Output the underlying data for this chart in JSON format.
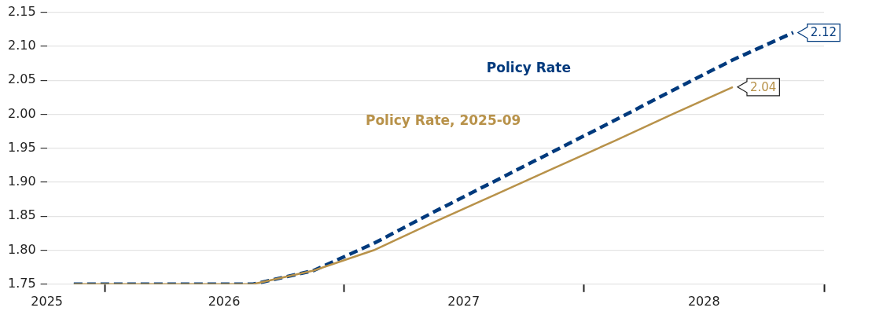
{
  "chart_data": {
    "type": "line",
    "x": [
      "2025-11-15",
      "2026-02-15",
      "2026-05-15",
      "2026-08-15",
      "2026-11-15",
      "2027-02-15",
      "2027-05-15",
      "2027-08-15",
      "2027-11-15",
      "2028-02-15",
      "2028-05-15",
      "2028-08-15",
      "2028-11-15"
    ],
    "series": [
      {
        "name": "Policy Rate",
        "color": "#003a7d",
        "line_style": "dashed",
        "values": [
          1.75,
          1.75,
          1.75,
          1.75,
          1.77,
          1.81,
          1.855,
          1.9,
          1.945,
          1.99,
          2.035,
          2.08,
          2.12
        ],
        "value_labels": [
          null,
          null,
          null,
          null,
          null,
          null,
          null,
          null,
          null,
          null,
          null,
          null,
          "2.12"
        ]
      },
      {
        "name": "Policy Rate, 2025-09",
        "color": "#b8924a",
        "line_style": "solid",
        "values": [
          1.75,
          1.75,
          1.75,
          1.75,
          1.77,
          1.8,
          1.84,
          1.88,
          1.92,
          1.96,
          2.0,
          2.04,
          null
        ],
        "value_labels": [
          null,
          null,
          null,
          null,
          null,
          null,
          null,
          null,
          null,
          null,
          null,
          "2.04",
          null
        ]
      }
    ],
    "xlim": [
      "2025-10-05",
      "2029-01-01"
    ],
    "xticks": [
      {
        "value": "2025-10-05",
        "label": "2025"
      },
      {
        "value": "2026-01-01",
        "label": null
      },
      {
        "value": "2026-07-02",
        "label": "2026"
      },
      {
        "value": "2027-01-01",
        "label": null
      },
      {
        "value": "2027-07-02",
        "label": "2027"
      },
      {
        "value": "2028-01-01",
        "label": null
      },
      {
        "value": "2028-07-02",
        "label": "2028"
      },
      {
        "value": "2029-01-01",
        "label": null
      }
    ],
    "ylim": [
      1.75,
      2.15
    ],
    "yticks": [
      1.75,
      {
        "value": 1.8,
        "label": "1.80"
      },
      1.85,
      {
        "value": 1.9,
        "label": "1.90"
      },
      1.95,
      {
        "value": 2.0,
        "label": "2.00"
      },
      2.05,
      {
        "value": 2.1,
        "label": "2.10"
      },
      2.15
    ],
    "grid": "y",
    "marker": "none"
  }
}
